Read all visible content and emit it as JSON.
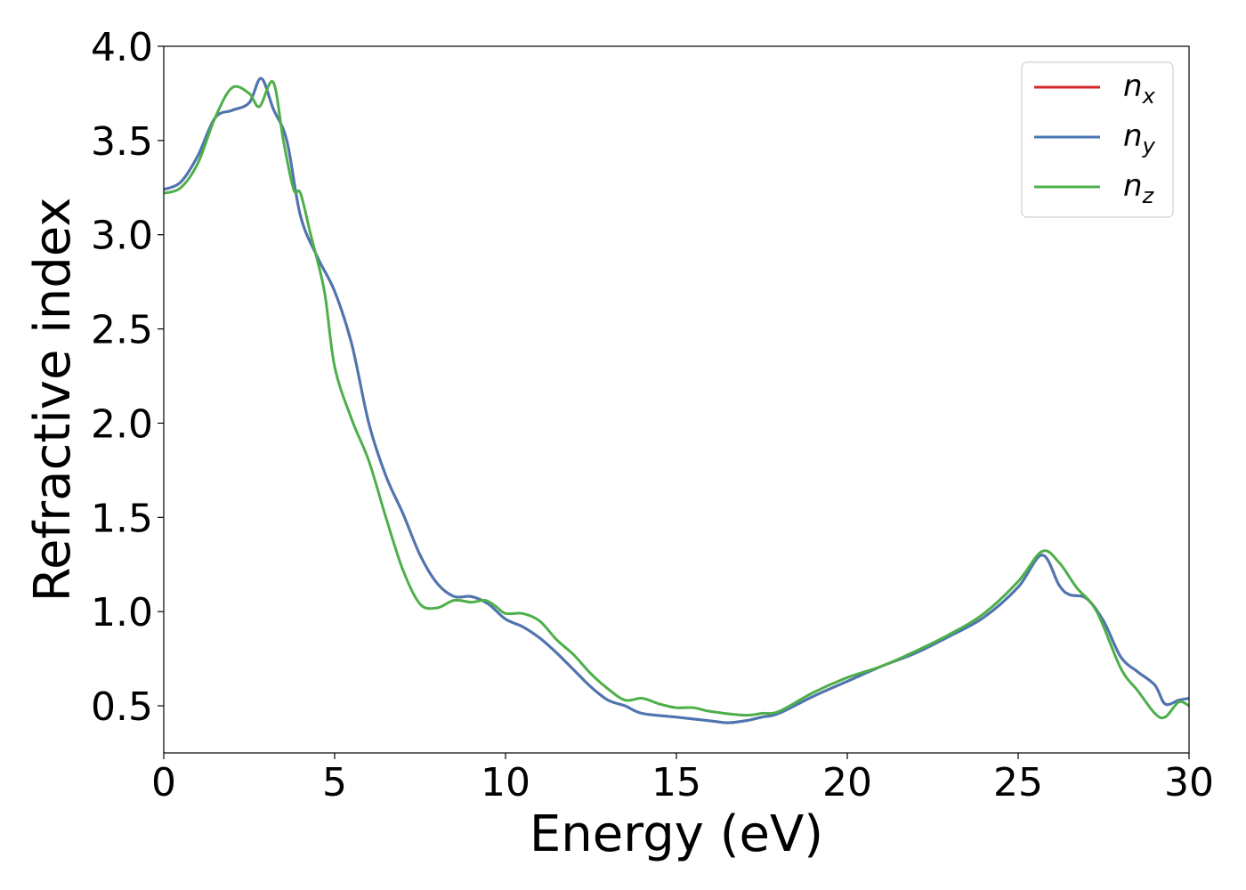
{
  "chart_data": {
    "type": "line",
    "title": "",
    "xlabel": "Energy (eV)",
    "ylabel": "Refractive index",
    "xlim": [
      0,
      30
    ],
    "ylim": [
      0.25,
      4.0
    ],
    "xticks": [
      "0",
      "5",
      "10",
      "15",
      "20",
      "25",
      "30"
    ],
    "yticks": [
      "0.5",
      "1.0",
      "1.5",
      "2.0",
      "2.5",
      "3.0",
      "3.5",
      "4.0"
    ],
    "grid": false,
    "legend_position": "top-right",
    "series": [
      {
        "name": "n",
        "subscript": "x",
        "color": "#d62728",
        "x": [
          0,
          0.5,
          1.0,
          1.5,
          2.0,
          2.5,
          2.85,
          3.2,
          3.6,
          4.0,
          4.5,
          5.0,
          5.5,
          6.0,
          6.5,
          7.0,
          7.5,
          8.0,
          8.5,
          9.0,
          9.5,
          10.0,
          10.5,
          11.0,
          11.5,
          12.0,
          12.5,
          13.0,
          13.5,
          14.0,
          15.0,
          16.0,
          16.5,
          17.0,
          17.5,
          18.0,
          19.0,
          20.0,
          21.0,
          22.0,
          23.0,
          24.0,
          25.0,
          25.7,
          26.2,
          26.5,
          27.0,
          27.5,
          28.0,
          28.5,
          29.0,
          29.3,
          29.7,
          30.0
        ],
        "y": [
          3.24,
          3.28,
          3.42,
          3.62,
          3.66,
          3.7,
          3.83,
          3.67,
          3.5,
          3.1,
          2.88,
          2.7,
          2.42,
          2.0,
          1.72,
          1.52,
          1.3,
          1.15,
          1.08,
          1.08,
          1.04,
          0.96,
          0.92,
          0.86,
          0.78,
          0.69,
          0.6,
          0.53,
          0.5,
          0.46,
          0.44,
          0.42,
          0.41,
          0.42,
          0.44,
          0.46,
          0.55,
          0.63,
          0.71,
          0.78,
          0.87,
          0.97,
          1.13,
          1.3,
          1.14,
          1.09,
          1.07,
          0.95,
          0.76,
          0.68,
          0.61,
          0.51,
          0.53,
          0.54
        ]
      },
      {
        "name": "n",
        "subscript": "y",
        "color": "#4a77b4",
        "x": [
          0,
          0.5,
          1.0,
          1.5,
          2.0,
          2.5,
          2.85,
          3.2,
          3.6,
          4.0,
          4.5,
          5.0,
          5.5,
          6.0,
          6.5,
          7.0,
          7.5,
          8.0,
          8.5,
          9.0,
          9.5,
          10.0,
          10.5,
          11.0,
          11.5,
          12.0,
          12.5,
          13.0,
          13.5,
          14.0,
          15.0,
          16.0,
          16.5,
          17.0,
          17.5,
          18.0,
          19.0,
          20.0,
          21.0,
          22.0,
          23.0,
          24.0,
          25.0,
          25.7,
          26.2,
          26.5,
          27.0,
          27.5,
          28.0,
          28.5,
          29.0,
          29.3,
          29.7,
          30.0
        ],
        "y": [
          3.24,
          3.28,
          3.42,
          3.62,
          3.66,
          3.7,
          3.83,
          3.67,
          3.5,
          3.1,
          2.88,
          2.7,
          2.42,
          2.0,
          1.72,
          1.52,
          1.3,
          1.15,
          1.08,
          1.08,
          1.04,
          0.96,
          0.92,
          0.86,
          0.78,
          0.69,
          0.6,
          0.53,
          0.5,
          0.46,
          0.44,
          0.42,
          0.41,
          0.42,
          0.44,
          0.46,
          0.55,
          0.63,
          0.71,
          0.78,
          0.87,
          0.97,
          1.13,
          1.3,
          1.14,
          1.09,
          1.07,
          0.95,
          0.76,
          0.68,
          0.61,
          0.51,
          0.53,
          0.54
        ]
      },
      {
        "name": "n",
        "subscript": "z",
        "color": "#4daf4a",
        "x": [
          0,
          0.5,
          1.0,
          1.5,
          2.0,
          2.5,
          2.8,
          3.2,
          3.5,
          3.8,
          4.0,
          4.3,
          4.7,
          5.0,
          5.5,
          6.0,
          6.5,
          7.0,
          7.5,
          8.0,
          8.5,
          9.0,
          9.4,
          9.7,
          10.0,
          10.5,
          11.0,
          11.5,
          12.0,
          12.5,
          13.0,
          13.5,
          14.0,
          14.5,
          15.0,
          15.5,
          16.0,
          17.0,
          17.5,
          18.0,
          19.0,
          20.0,
          21.0,
          22.0,
          23.0,
          24.0,
          25.0,
          25.7,
          26.2,
          26.7,
          27.3,
          28.0,
          28.5,
          29.0,
          29.3,
          29.7,
          30.0
        ],
        "y": [
          3.22,
          3.25,
          3.38,
          3.62,
          3.78,
          3.75,
          3.68,
          3.81,
          3.5,
          3.24,
          3.22,
          3.0,
          2.7,
          2.3,
          2.02,
          1.8,
          1.5,
          1.22,
          1.04,
          1.02,
          1.06,
          1.05,
          1.06,
          1.03,
          0.99,
          0.99,
          0.95,
          0.85,
          0.77,
          0.67,
          0.59,
          0.53,
          0.54,
          0.51,
          0.49,
          0.49,
          0.47,
          0.45,
          0.46,
          0.47,
          0.57,
          0.65,
          0.71,
          0.79,
          0.88,
          0.99,
          1.16,
          1.32,
          1.26,
          1.13,
          1.0,
          0.7,
          0.58,
          0.46,
          0.44,
          0.52,
          0.5
        ]
      }
    ]
  }
}
